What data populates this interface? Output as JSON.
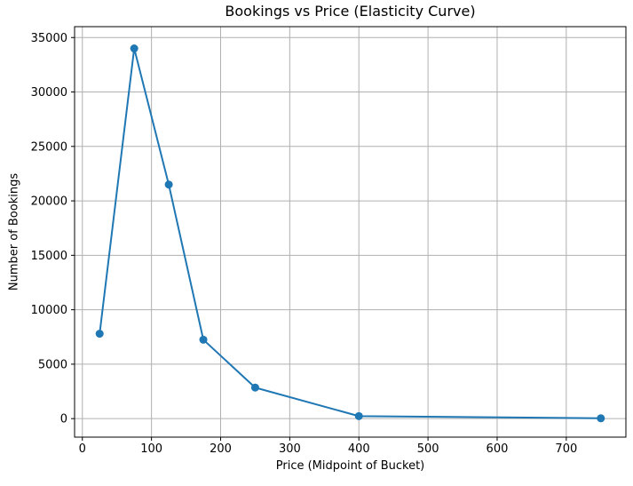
{
  "chart_data": {
    "type": "line",
    "title": "Bookings vs Price (Elasticity Curve)",
    "xlabel": "Price (Midpoint of Bucket)",
    "ylabel": "Number of Bookings",
    "x": [
      25,
      75,
      125,
      175,
      250,
      400,
      750
    ],
    "y": [
      7800,
      34000,
      21500,
      7250,
      2850,
      230,
      30
    ],
    "xticks": [
      0,
      100,
      200,
      300,
      400,
      500,
      600,
      700
    ],
    "yticks": [
      0,
      5000,
      10000,
      15000,
      20000,
      25000,
      30000,
      35000
    ],
    "xlim": [
      -11.25,
      786.25
    ],
    "ylim": [
      -1700,
      36000
    ],
    "grid": true,
    "legend": "none",
    "line_color": "#1f77b4",
    "marker": "o",
    "marker_color": "#1f77b4",
    "grid_color": "#b0b0b0",
    "spine_color": "#000000",
    "background_color": "#ffffff"
  }
}
